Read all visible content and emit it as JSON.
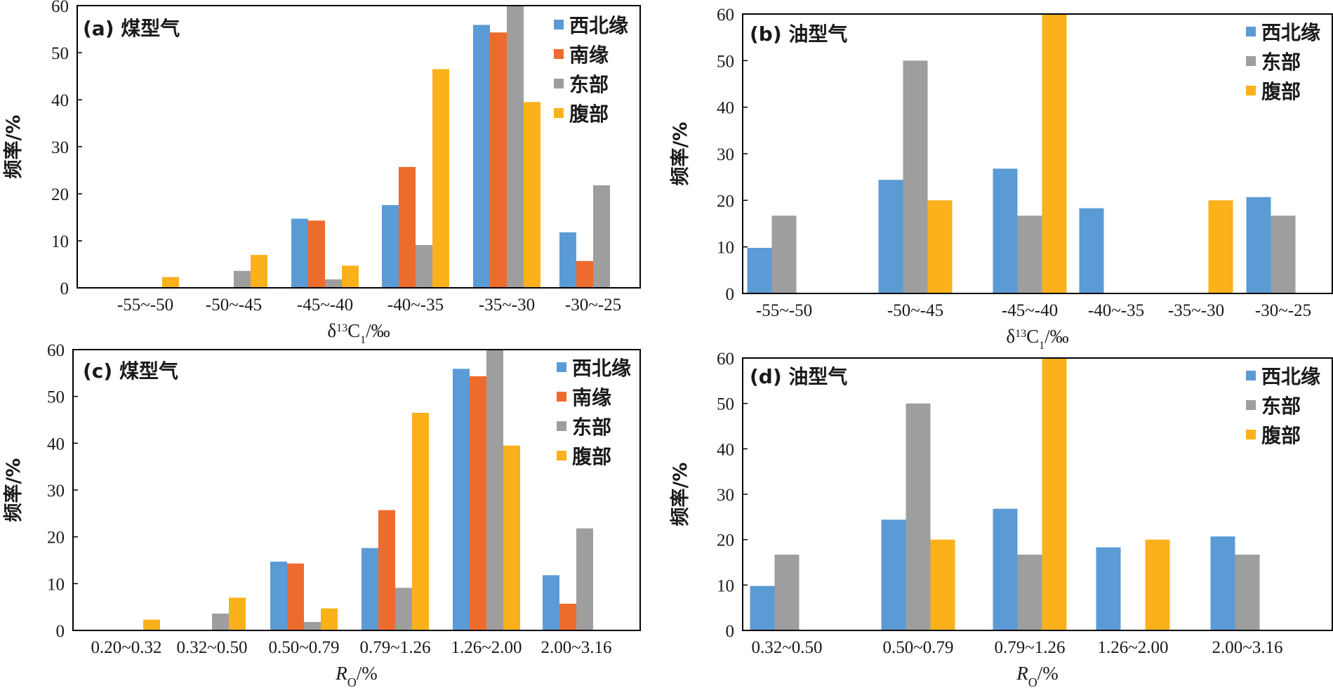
{
  "chart_data": [
    {
      "type": "bar",
      "title": "(a) 煤型气",
      "xlabel": "δ13C1/‰",
      "ylabel": "频率/%",
      "ylim": [
        0,
        60
      ],
      "yticks": [
        0,
        10,
        20,
        30,
        40,
        50,
        60
      ],
      "legend": "top-right",
      "categories": [
        "-55~-50",
        "-50~-45",
        "-45~-40",
        "-40~-35",
        "-35~-30",
        "-30~-25"
      ],
      "series": [
        {
          "name": "西北缘",
          "color": "#5b9bd5",
          "values": [
            0,
            0,
            14.7,
            17.6,
            55.9,
            11.8
          ]
        },
        {
          "name": "南缘",
          "color": "#ed6b2c",
          "values": [
            0,
            0,
            14.3,
            25.7,
            54.3,
            5.7
          ]
        },
        {
          "name": "东部",
          "color": "#9e9e9e",
          "values": [
            0,
            3.6,
            1.8,
            9.1,
            60,
            21.8
          ]
        },
        {
          "name": "腹部",
          "color": "#fbb11b",
          "values": [
            2.3,
            7.0,
            4.7,
            46.5,
            39.5,
            0
          ]
        }
      ]
    },
    {
      "type": "bar",
      "title": "(b) 油型气",
      "xlabel": "δ13C1/‰",
      "ylabel": "频率/%",
      "ylim": [
        0,
        60
      ],
      "yticks": [
        0,
        10,
        20,
        30,
        40,
        50,
        60
      ],
      "legend": "top-right",
      "categories": [
        "-55~-50",
        "-50~-45",
        "-45~-40",
        "-40~-35",
        "-35~-30",
        "-30~-25"
      ],
      "series": [
        {
          "name": "西北缘",
          "color": "#5b9bd5",
          "values": [
            9.8,
            24.4,
            26.8,
            18.3,
            0,
            20.7
          ]
        },
        {
          "name": "东部",
          "color": "#9e9e9e",
          "values": [
            16.7,
            50,
            16.7,
            0,
            0,
            16.7
          ]
        },
        {
          "name": "腹部",
          "color": "#fbb11b",
          "values": [
            0,
            20,
            60,
            0,
            20,
            0
          ]
        }
      ]
    },
    {
      "type": "bar",
      "title": "(c) 煤型气",
      "xlabel": "Ro/%",
      "ylabel": "频率/%",
      "ylim": [
        0,
        60
      ],
      "yticks": [
        0,
        10,
        20,
        30,
        40,
        50,
        60
      ],
      "legend": "top-right",
      "categories": [
        "0.20~0.32",
        "0.32~0.50",
        "0.50~0.79",
        "0.79~1.26",
        "1.26~2.00",
        "2.00~3.16"
      ],
      "series": [
        {
          "name": "西北缘",
          "color": "#5b9bd5",
          "values": [
            0,
            0,
            14.7,
            17.6,
            55.9,
            11.8
          ]
        },
        {
          "name": "南缘",
          "color": "#ed6b2c",
          "values": [
            0,
            0,
            14.3,
            25.7,
            54.3,
            5.7
          ]
        },
        {
          "name": "东部",
          "color": "#9e9e9e",
          "values": [
            0,
            3.6,
            1.8,
            9.1,
            60,
            21.8
          ]
        },
        {
          "name": "腹部",
          "color": "#fbb11b",
          "values": [
            2.3,
            7.0,
            4.7,
            46.5,
            39.5,
            0
          ]
        }
      ]
    },
    {
      "type": "bar",
      "title": "(d) 油型气",
      "xlabel": "Ro/%",
      "ylabel": "频率/%",
      "ylim": [
        0,
        60
      ],
      "yticks": [
        0,
        10,
        20,
        30,
        40,
        50,
        60
      ],
      "legend": "top-right",
      "categories": [
        "0.32~0.50",
        "0.50~0.79",
        "0.79~1.26",
        "1.26~2.00",
        "2.00~3.16"
      ],
      "series": [
        {
          "name": "西北缘",
          "color": "#5b9bd5",
          "values": [
            9.8,
            24.4,
            26.8,
            18.3,
            20.7
          ]
        },
        {
          "name": "东部",
          "color": "#9e9e9e",
          "values": [
            16.7,
            50,
            16.7,
            0,
            16.7
          ]
        },
        {
          "name": "腹部",
          "color": "#fbb11b",
          "values": [
            0,
            20,
            60,
            20,
            0
          ]
        }
      ]
    }
  ]
}
